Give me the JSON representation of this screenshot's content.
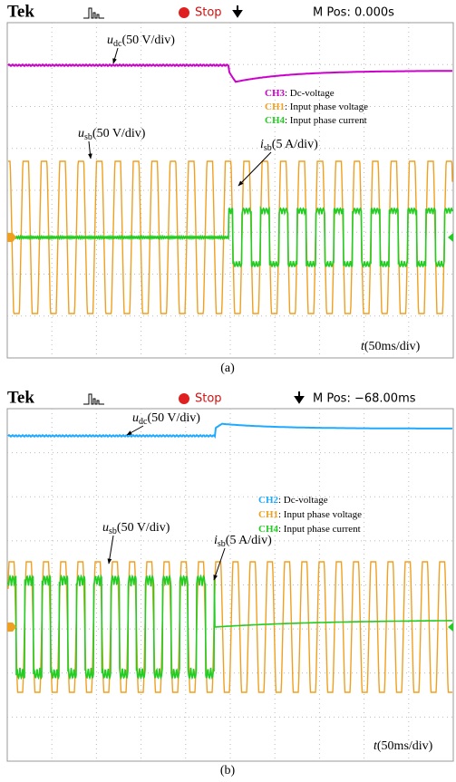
{
  "panels": [
    {
      "brand": "Tek",
      "status": "Stop",
      "position": "M Pos: 0.000s",
      "annotations": [
        {
          "symbol": "u",
          "subscript": "dc",
          "scale": "(50 V/div)"
        },
        {
          "symbol": "u",
          "subscript": "sb",
          "scale": "(50 V/div)"
        },
        {
          "symbol": "i",
          "subscript": "sb",
          "scale": "(5 A/div)"
        }
      ],
      "time_scale": {
        "symbol": "t",
        "scale": "(50ms/div)"
      },
      "legend": [
        {
          "channel": "CH3",
          "description": ": Dc-voltage",
          "color": "#cc00cc"
        },
        {
          "channel": "CH1",
          "description": ": Input phase voltage",
          "color": "#f0a020"
        },
        {
          "channel": "CH4",
          "description": ": Input phase current",
          "color": "#22cc22"
        }
      ],
      "caption": "(a)"
    },
    {
      "brand": "Tek",
      "status": "Stop",
      "position": "M Pos: −68.00ms",
      "annotations": [
        {
          "symbol": "u",
          "subscript": "dc",
          "scale": "(50 V/div)"
        },
        {
          "symbol": "u",
          "subscript": "sb",
          "scale": "(50 V/div)"
        },
        {
          "symbol": "i",
          "subscript": "sb",
          "scale": "(5 A/div)"
        }
      ],
      "time_scale": {
        "symbol": "t",
        "scale": "(50ms/div)"
      },
      "legend": [
        {
          "channel": "CH2",
          "description": ": Dc-voltage",
          "color": "#1eaaff"
        },
        {
          "channel": "CH1",
          "description": ": Input phase voltage",
          "color": "#f0a020"
        },
        {
          "channel": "CH4",
          "description": ": Input phase current",
          "color": "#22cc22"
        }
      ],
      "caption": "(b)"
    }
  ]
}
